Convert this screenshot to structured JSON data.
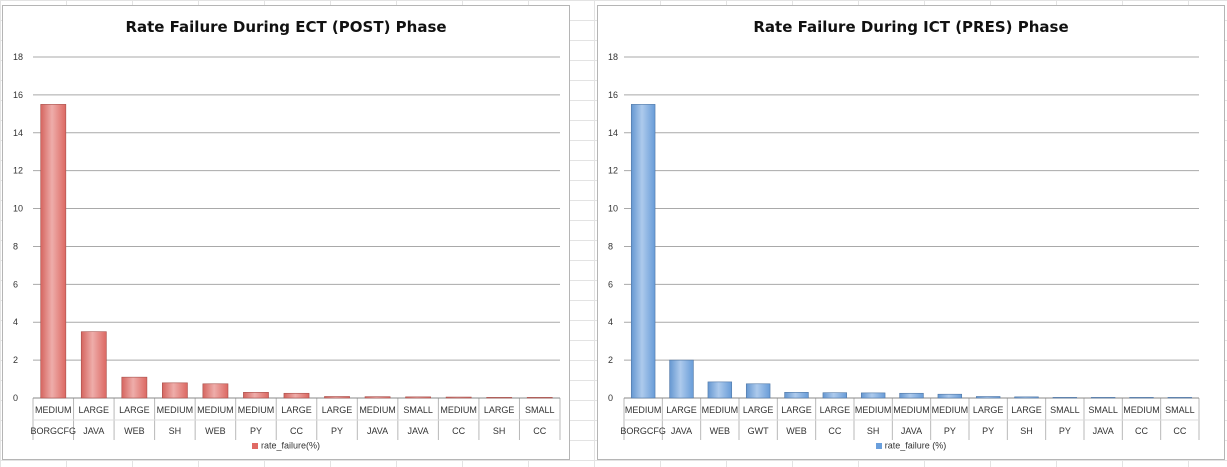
{
  "chart_data": [
    {
      "type": "bar",
      "title": "Rate Failure During ECT (POST) Phase",
      "categories": [
        [
          "MEDIUM",
          "BORGCFG"
        ],
        [
          "LARGE",
          "JAVA"
        ],
        [
          "LARGE",
          "WEB"
        ],
        [
          "MEDIUM",
          "SH"
        ],
        [
          "MEDIUM",
          "WEB"
        ],
        [
          "MEDIUM",
          "PY"
        ],
        [
          "LARGE",
          "CC"
        ],
        [
          "LARGE",
          "PY"
        ],
        [
          "MEDIUM",
          "JAVA"
        ],
        [
          "SMALL",
          "JAVA"
        ],
        [
          "MEDIUM",
          "CC"
        ],
        [
          "LARGE",
          "SH"
        ],
        [
          "SMALL",
          "CC"
        ]
      ],
      "series": [
        {
          "name": "rate_failure(%)",
          "color": "#e06a64",
          "values": [
            15.5,
            3.5,
            1.1,
            0.8,
            0.75,
            0.3,
            0.25,
            0.08,
            0.07,
            0.06,
            0.05,
            0.02,
            0.01
          ]
        }
      ],
      "ylim": [
        0,
        18
      ],
      "yticks": [
        0,
        2,
        4,
        6,
        8,
        10,
        12,
        14,
        16,
        18
      ],
      "grid": true,
      "legend_position": "bottom"
    },
    {
      "type": "bar",
      "title": "Rate Failure During ICT (PRES)  Phase",
      "categories": [
        [
          "MEDIUM",
          "BORGCFG"
        ],
        [
          "LARGE",
          "JAVA"
        ],
        [
          "MEDIUM",
          "WEB"
        ],
        [
          "LARGE",
          "GWT"
        ],
        [
          "LARGE",
          "WEB"
        ],
        [
          "LARGE",
          "CC"
        ],
        [
          "MEDIUM",
          "SH"
        ],
        [
          "MEDIUM",
          "JAVA"
        ],
        [
          "MEDIUM",
          "PY"
        ],
        [
          "LARGE",
          "PY"
        ],
        [
          "LARGE",
          "SH"
        ],
        [
          "SMALL",
          "PY"
        ],
        [
          "SMALL",
          "JAVA"
        ],
        [
          "MEDIUM",
          "CC"
        ],
        [
          "SMALL",
          "CC"
        ]
      ],
      "series": [
        {
          "name": "rate_failure (%)",
          "color": "#6a9fdc",
          "values": [
            15.5,
            2.0,
            0.85,
            0.75,
            0.3,
            0.28,
            0.27,
            0.25,
            0.2,
            0.08,
            0.06,
            0.03,
            0.02,
            0.015,
            0.01
          ]
        }
      ],
      "ylim": [
        0,
        18
      ],
      "yticks": [
        0,
        2,
        4,
        6,
        8,
        10,
        12,
        14,
        16,
        18
      ],
      "grid": true,
      "legend_position": "bottom"
    }
  ]
}
